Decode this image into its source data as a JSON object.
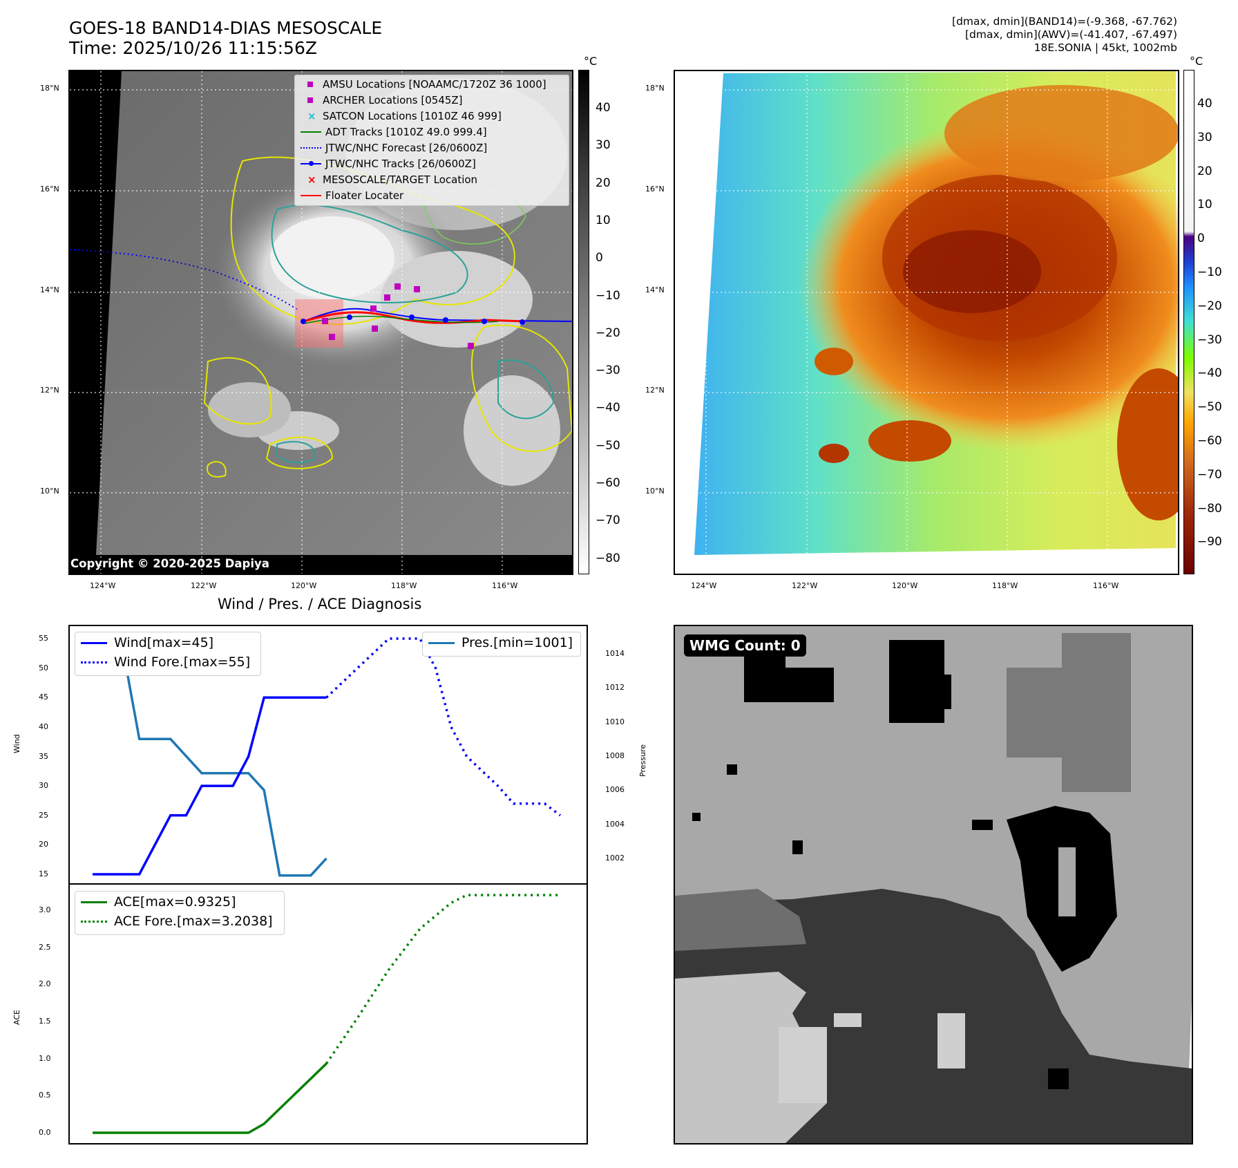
{
  "header": {
    "title_line1": "GOES-18 BAND14-DIAS MESOSCALE",
    "title_line2": "Time: 2025/10/26 11:15:56Z",
    "info_line1": "[dmax, dmin](BAND14)=(-9.368, -67.762)",
    "info_line2": "[dmax, dmin](AWV)=(-41.407, -67.497)",
    "info_line3": "18E.SONIA | 45kt, 1002mb"
  },
  "map_axes": {
    "lat_labels": [
      "18°N",
      "16°N",
      "14°N",
      "12°N",
      "10°N"
    ],
    "lon_labels": [
      "124°W",
      "122°W",
      "120°W",
      "118°W",
      "116°W"
    ]
  },
  "ir_panel": {
    "unit": "°C",
    "colorbar_ticks": [
      "40",
      "30",
      "20",
      "10",
      "0",
      "−10",
      "−20",
      "−30",
      "−40",
      "−50",
      "−60",
      "−70",
      "−80"
    ],
    "copyright": "Copyright © 2020-2025 Dapiya",
    "legend": [
      {
        "label": "AMSU Locations [NOAAMC/1720Z 36 1000]",
        "marker": "square",
        "color": "#bf00bf"
      },
      {
        "label": "ARCHER Locations [0545Z]",
        "marker": "square",
        "color": "#bf00bf"
      },
      {
        "label": "SATCON Locations [1010Z 46 999]",
        "marker": "x",
        "color": "#17becf"
      },
      {
        "label": "ADT Tracks [1010Z 49.0 999.4]",
        "marker": "line",
        "color": "#008000"
      },
      {
        "label": "JTWC/NHC Forecast [26/0600Z]",
        "marker": "dotted",
        "color": "#0000ff"
      },
      {
        "label": "JTWC/NHC Tracks [26/0600Z]",
        "marker": "line-dot",
        "color": "#0000ff"
      },
      {
        "label": "MESOSCALE/TARGET Location",
        "marker": "x",
        "color": "#ff0000"
      },
      {
        "label": "Floater Locater",
        "marker": "line",
        "color": "#ff0000"
      }
    ]
  },
  "awv_panel": {
    "unit": "°C",
    "colorbar_ticks": [
      "40",
      "30",
      "20",
      "10",
      "0",
      "−10",
      "−20",
      "−30",
      "−40",
      "−50",
      "−60",
      "−70",
      "−80",
      "−90"
    ]
  },
  "wmg_panel": {
    "badge": "WMG Count: 0"
  },
  "chart_data": [
    {
      "type": "line",
      "title": "Wind / Pres. / ACE Diagnosis",
      "ylabel": "Wind",
      "ylabel_right": "Pressure",
      "x": [
        0,
        1,
        2,
        3,
        4,
        5,
        6,
        7,
        8,
        9,
        10,
        11,
        12,
        13,
        14,
        15,
        16,
        17,
        18,
        19,
        20,
        21,
        22,
        23,
        24,
        25,
        26,
        27,
        28,
        29,
        30
      ],
      "yticks_left": [
        "55",
        "50",
        "45",
        "40",
        "35",
        "30",
        "25",
        "20",
        "15"
      ],
      "yticks_right": [
        "1014",
        "1012",
        "1010",
        "1008",
        "1006",
        "1004",
        "1002"
      ],
      "ylim": [
        14,
        56
      ],
      "ylim_right": [
        1000.2,
        1015.5
      ],
      "series": [
        {
          "name": "Wind[max=45]",
          "axis": "left",
          "style": "solid",
          "color": "#0000ff",
          "x": [
            0,
            3,
            5,
            6,
            7,
            8,
            9,
            10,
            11,
            12,
            13,
            14,
            15
          ],
          "values": [
            15,
            15,
            25,
            25,
            30,
            30,
            30,
            35,
            45,
            45,
            45,
            45,
            45
          ]
        },
        {
          "name": "Wind Fore.[max=55]",
          "axis": "left",
          "style": "dotted",
          "color": "#0000ff",
          "x": [
            15,
            17,
            19,
            21,
            22,
            23,
            24,
            25,
            26,
            27,
            28,
            29,
            30
          ],
          "values": [
            45,
            50,
            55,
            55,
            50,
            40,
            35,
            32.5,
            30,
            27,
            27,
            27,
            25
          ]
        },
        {
          "name": "Pres.[min=1001]",
          "axis": "right",
          "style": "solid",
          "color": "#1f77b4",
          "x": [
            0,
            1.8,
            3,
            5,
            7,
            10,
            11,
            12,
            14,
            15
          ],
          "values": [
            1015,
            1015,
            1009,
            1009,
            1007,
            1007,
            1006,
            1001,
            1001,
            1002
          ]
        }
      ]
    },
    {
      "type": "line",
      "ylabel": "ACE",
      "x": [
        0,
        1,
        2,
        3,
        4,
        5,
        6,
        7,
        8,
        9,
        10,
        11,
        12,
        13,
        14,
        15,
        16,
        17,
        18,
        19,
        20,
        21,
        22,
        23,
        24,
        25,
        26,
        27,
        28,
        29,
        30
      ],
      "yticks": [
        "3.0",
        "2.5",
        "2.0",
        "1.5",
        "1.0",
        "0.5",
        "0.0"
      ],
      "ylim": [
        -0.1,
        3.35
      ],
      "series": [
        {
          "name": "ACE[max=0.9325]",
          "style": "solid",
          "color": "#008000",
          "x": [
            0,
            10,
            11,
            15
          ],
          "values": [
            0,
            0,
            0.12,
            0.9325
          ]
        },
        {
          "name": "ACE Fore.[max=3.2038]",
          "style": "dotted",
          "color": "#008000",
          "x": [
            15,
            17,
            19,
            21,
            23,
            24,
            25,
            30
          ],
          "values": [
            0.9325,
            1.55,
            2.2,
            2.75,
            3.1,
            3.2038,
            3.2038,
            3.2038
          ]
        }
      ]
    }
  ]
}
